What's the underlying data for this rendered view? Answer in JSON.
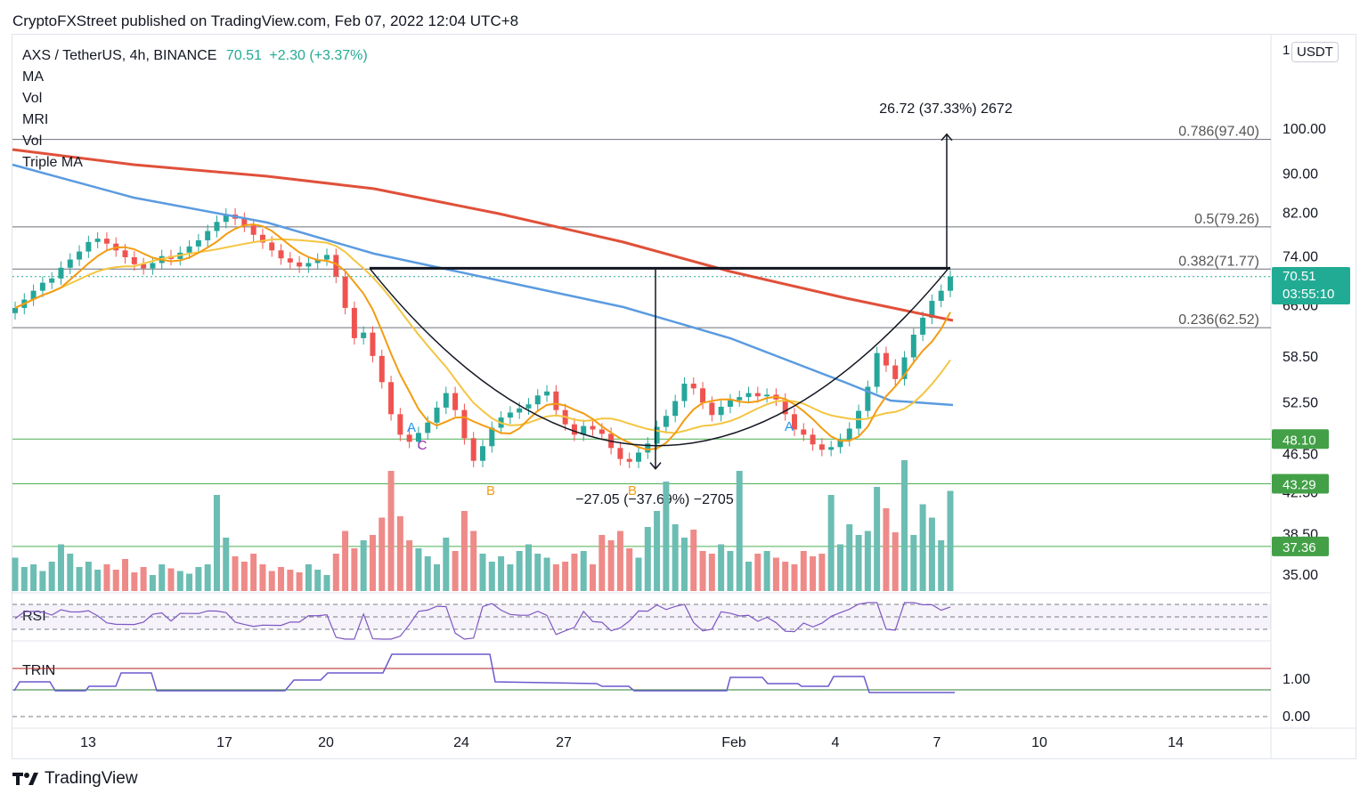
{
  "header": {
    "publisher_line": "CryptoFXStreet published on TradingView.com, Feb 07, 2022 12:04 UTC+8"
  },
  "symbol": {
    "name": "AXS / TetherUS, 4h, BINANCE",
    "last": "70.51",
    "change": "+2.30 (+3.37%)"
  },
  "indicators": [
    "MA",
    "Vol",
    "MRI",
    "Vol",
    "Triple MA"
  ],
  "currency_button": "USDT",
  "scale_mode": "1",
  "countdown": "03:55:10",
  "footer": {
    "brand": "TradingView"
  },
  "colors": {
    "up": "#26a69a",
    "down": "#ef5350",
    "ma_red": "#e0503a",
    "ma_blue": "#5a9be0",
    "ma_orange": "#f39c12",
    "ma_yellow": "#f4c542",
    "rsi": "#7e57c2",
    "trin": "#6a5acd",
    "accent_teal": "#22ab94"
  },
  "chart_data": {
    "type": "candlestick",
    "title": "AXS / TetherUS, 4h, BINANCE",
    "price_axis": {
      "scale": "log",
      "ticks": [
        100.0,
        90.0,
        82.0,
        74.0,
        66.0,
        58.5,
        52.5,
        46.5,
        42.5,
        38.5,
        35.0
      ]
    },
    "time_axis": {
      "labels": [
        "13",
        "17",
        "20",
        "24",
        "27",
        "Feb",
        "4",
        "7",
        "10",
        "14"
      ]
    },
    "fibonacci_levels": [
      {
        "ratio": "0.786",
        "price": 97.4,
        "label": "0.786(97.40)"
      },
      {
        "ratio": "0.5",
        "price": 79.26,
        "label": "0.5(79.26)"
      },
      {
        "ratio": "0.382",
        "price": 71.77,
        "label": "0.382(71.77)"
      },
      {
        "ratio": "0.236",
        "price": 62.52,
        "label": "0.236(62.52)"
      }
    ],
    "horizontal_lines": [
      {
        "price": 48.1,
        "label": "48.10"
      },
      {
        "price": 43.29,
        "label": "43.29"
      },
      {
        "price": 37.36,
        "label": "37.36"
      }
    ],
    "last_price": {
      "price": 70.51,
      "label": "70.51"
    },
    "neckline_price": 71.9,
    "measure_up": {
      "from": 71.9,
      "to": 98.6,
      "label": "26.72 (37.33%) 2672"
    },
    "measure_down": {
      "from": 71.9,
      "to": 44.85,
      "label": "−27.05 (−37.69%) −2705"
    },
    "pattern": "cup",
    "pattern_labels": [
      "A",
      "C",
      "B",
      "B",
      "A"
    ],
    "closes": [
      65.5,
      66.8,
      68.2,
      69.5,
      70.2,
      72.0,
      73.4,
      74.8,
      76.5,
      77.1,
      76.2,
      75.0,
      73.8,
      72.6,
      71.9,
      72.8,
      74.0,
      73.5,
      74.6,
      75.7,
      76.8,
      78.5,
      80.2,
      81.6,
      80.8,
      79.5,
      77.8,
      76.4,
      75.0,
      73.6,
      72.9,
      72.2,
      72.8,
      73.4,
      74.2,
      70.5,
      65.5,
      61.0,
      61.8,
      58.5,
      55.0,
      51.0,
      48.6,
      47.8,
      48.8,
      50.0,
      51.8,
      53.6,
      51.5,
      48.2,
      45.7,
      47.3,
      49.4,
      50.6,
      51.2,
      51.7,
      52.2,
      53.3,
      53.8,
      51.5,
      49.8,
      48.6,
      49.6,
      49.2,
      48.7,
      47.1,
      45.9,
      45.6,
      46.6,
      47.6,
      49.5,
      50.8,
      52.6,
      54.8,
      54.2,
      52.4,
      50.9,
      51.9,
      52.7,
      53.1,
      53.6,
      53.2,
      53.4,
      52.8,
      51.0,
      49.2,
      48.6,
      47.5,
      46.9,
      47.2,
      48.0,
      49.3,
      51.4,
      54.4,
      58.9,
      57.2,
      55.4,
      58.3,
      61.5,
      64.0,
      66.6,
      68.2,
      70.51
    ],
    "volume_rel": [
      0.25,
      0.18,
      0.2,
      0.15,
      0.22,
      0.35,
      0.28,
      0.18,
      0.22,
      0.16,
      0.2,
      0.16,
      0.24,
      0.14,
      0.18,
      0.12,
      0.2,
      0.17,
      0.15,
      0.13,
      0.18,
      0.2,
      0.72,
      0.4,
      0.26,
      0.22,
      0.28,
      0.2,
      0.15,
      0.18,
      0.16,
      0.14,
      0.2,
      0.16,
      0.12,
      0.28,
      0.45,
      0.32,
      0.38,
      0.42,
      0.55,
      0.9,
      0.56,
      0.38,
      0.32,
      0.26,
      0.2,
      0.4,
      0.3,
      0.6,
      0.45,
      0.28,
      0.22,
      0.26,
      0.2,
      0.3,
      0.35,
      0.28,
      0.25,
      0.2,
      0.22,
      0.28,
      0.3,
      0.2,
      0.42,
      0.38,
      0.45,
      0.32,
      0.25,
      0.48,
      0.6,
      0.82,
      0.5,
      0.4,
      0.46,
      0.3,
      0.28,
      0.35,
      0.3,
      0.9,
      0.22,
      0.28,
      0.3,
      0.25,
      0.22,
      0.2,
      0.3,
      0.26,
      0.28,
      0.72,
      0.35,
      0.5,
      0.42,
      0.45,
      0.78,
      0.62,
      0.44,
      0.98,
      0.42,
      0.65,
      0.55,
      0.38,
      0.75
    ],
    "rsi": {
      "label": "RSI",
      "bands": [
        70,
        50,
        30
      ]
    },
    "trin": {
      "label": "TRIN",
      "ticks": [
        1.0,
        0.0
      ]
    }
  }
}
